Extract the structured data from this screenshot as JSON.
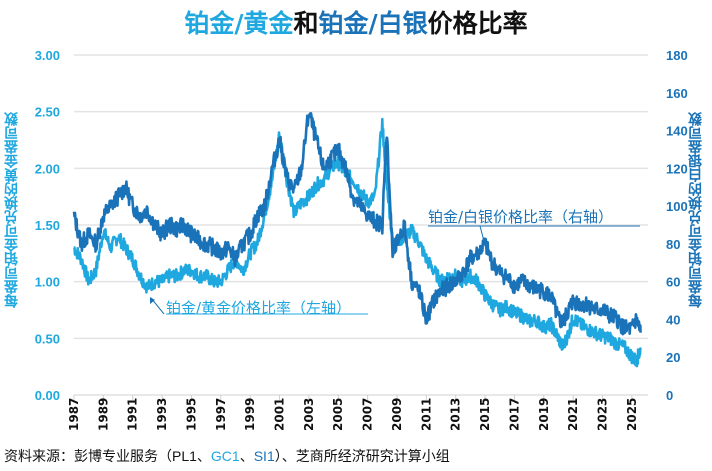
{
  "title": {
    "part1": "铂金/黄金",
    "part2": "和",
    "part3": "铂金/白银",
    "part4": "价格比率"
  },
  "source": {
    "prefix": "资料来源：彭博专业服务（",
    "pl": "PL1",
    "sep1": "、",
    "gc": "GC1",
    "sep2": "、",
    "si": "SI1",
    "suffix": "）、芝商所经济研究计算小组"
  },
  "chart_data": {
    "type": "line",
    "title": "铂金/黄金和铂金/白银价格比率",
    "xlabel": "",
    "ylabel_left": "每盎司铂金可兑换的黄金盎司数",
    "ylabel_right": "每盎司铂金可兑换的白银盎司数",
    "xlim": [
      1987,
      2026
    ],
    "ylim_left": [
      0,
      3
    ],
    "ylim_right": [
      0,
      180
    ],
    "x_ticks": [
      "1987",
      "1989",
      "1991",
      "1993",
      "1995",
      "1997",
      "1999",
      "2001",
      "2003",
      "2005",
      "2007",
      "2009",
      "2011",
      "2013",
      "2015",
      "2017",
      "2019",
      "2021",
      "2023",
      "2025"
    ],
    "y_ticks_left": [
      "0.00",
      "0.50",
      "1.00",
      "1.50",
      "2.00",
      "2.50",
      "3.00"
    ],
    "y_ticks_right": [
      "0",
      "20",
      "40",
      "60",
      "80",
      "100",
      "120",
      "140",
      "160",
      "180"
    ],
    "grid": true,
    "colors": {
      "pt_au": "#1fa8e0",
      "pt_ag": "#1a73b8"
    },
    "annotations": [
      {
        "text": "铂金/白银价格比率（右轴）",
        "series": "pt_ag"
      },
      {
        "text": "铂金/黄金价格比率（左轴）",
        "series": "pt_au"
      }
    ],
    "series": [
      {
        "name": "铂金/黄金价格比率（左轴）",
        "axis": "left",
        "x": [
          1987.0,
          1987.5,
          1988.0,
          1988.5,
          1989.0,
          1989.5,
          1990.0,
          1990.5,
          1991.0,
          1991.5,
          1992.0,
          1992.5,
          1993.0,
          1993.5,
          1994.0,
          1994.5,
          1995.0,
          1995.5,
          1996.0,
          1996.5,
          1997.0,
          1997.5,
          1998.0,
          1998.5,
          1999.0,
          1999.5,
          2000.0,
          2000.5,
          2001.0,
          2001.5,
          2002.0,
          2002.5,
          2003.0,
          2003.5,
          2004.0,
          2004.5,
          2005.0,
          2005.5,
          2006.0,
          2006.5,
          2007.0,
          2007.5,
          2008.0,
          2008.3,
          2008.7,
          2009.0,
          2009.5,
          2010.0,
          2010.5,
          2011.0,
          2011.5,
          2012.0,
          2012.5,
          2013.0,
          2013.5,
          2014.0,
          2014.5,
          2015.0,
          2015.5,
          2016.0,
          2016.5,
          2017.0,
          2017.5,
          2018.0,
          2018.5,
          2019.0,
          2019.5,
          2020.0,
          2020.3,
          2020.7,
          2021.0,
          2021.5,
          2022.0,
          2022.5,
          2023.0,
          2023.5,
          2024.0,
          2024.5,
          2025.0,
          2025.3,
          2025.6
        ],
        "values": [
          1.3,
          1.2,
          1.0,
          1.1,
          1.45,
          1.3,
          1.4,
          1.3,
          1.2,
          1.05,
          0.95,
          1.0,
          1.0,
          1.05,
          1.05,
          1.1,
          1.1,
          1.05,
          1.05,
          1.0,
          1.0,
          1.1,
          1.2,
          1.1,
          1.25,
          1.35,
          1.6,
          1.9,
          2.3,
          1.9,
          1.6,
          1.7,
          1.75,
          1.85,
          1.9,
          2.0,
          2.05,
          1.95,
          1.9,
          1.8,
          1.7,
          1.75,
          2.4,
          1.9,
          1.35,
          1.35,
          1.4,
          1.45,
          1.35,
          1.2,
          1.1,
          1.0,
          1.05,
          1.05,
          1.0,
          1.05,
          1.0,
          0.88,
          0.8,
          0.75,
          0.78,
          0.72,
          0.7,
          0.65,
          0.66,
          0.6,
          0.62,
          0.5,
          0.42,
          0.55,
          0.68,
          0.62,
          0.58,
          0.55,
          0.52,
          0.5,
          0.45,
          0.42,
          0.34,
          0.3,
          0.4
        ]
      },
      {
        "name": "铂金/白银价格比率（右轴）",
        "axis": "right",
        "x": [
          1987.0,
          1987.5,
          1988.0,
          1988.5,
          1989.0,
          1989.5,
          1990.0,
          1990.5,
          1991.0,
          1991.5,
          1992.0,
          1992.5,
          1993.0,
          1993.5,
          1994.0,
          1994.5,
          1995.0,
          1995.5,
          1996.0,
          1996.5,
          1997.0,
          1997.5,
          1998.0,
          1998.5,
          1999.0,
          1999.5,
          2000.0,
          2000.5,
          2001.0,
          2001.5,
          2002.0,
          2002.5,
          2003.0,
          2003.5,
          2004.0,
          2004.5,
          2005.0,
          2005.5,
          2006.0,
          2006.5,
          2007.0,
          2007.5,
          2008.0,
          2008.3,
          2008.7,
          2009.0,
          2009.5,
          2010.0,
          2010.5,
          2011.0,
          2011.5,
          2012.0,
          2012.5,
          2013.0,
          2013.5,
          2014.0,
          2014.5,
          2015.0,
          2015.5,
          2016.0,
          2016.5,
          2017.0,
          2017.5,
          2018.0,
          2018.5,
          2019.0,
          2019.5,
          2020.0,
          2020.3,
          2020.7,
          2021.0,
          2021.5,
          2022.0,
          2022.5,
          2023.0,
          2023.5,
          2024.0,
          2024.5,
          2025.0,
          2025.3,
          2025.6
        ],
        "values": [
          95,
          80,
          85,
          80,
          95,
          100,
          105,
          110,
          100,
          95,
          98,
          90,
          85,
          90,
          88,
          90,
          85,
          82,
          80,
          78,
          75,
          78,
          72,
          80,
          85,
          95,
          100,
          120,
          135,
          115,
          108,
          120,
          150,
          135,
          120,
          125,
          130,
          120,
          105,
          100,
          95,
          92,
          90,
          140,
          75,
          80,
          90,
          60,
          55,
          40,
          50,
          55,
          58,
          60,
          65,
          72,
          75,
          80,
          70,
          65,
          62,
          58,
          60,
          58,
          56,
          55,
          52,
          40,
          38,
          45,
          50,
          48,
          48,
          45,
          45,
          42,
          40,
          35,
          35,
          40,
          33
        ]
      }
    ]
  }
}
